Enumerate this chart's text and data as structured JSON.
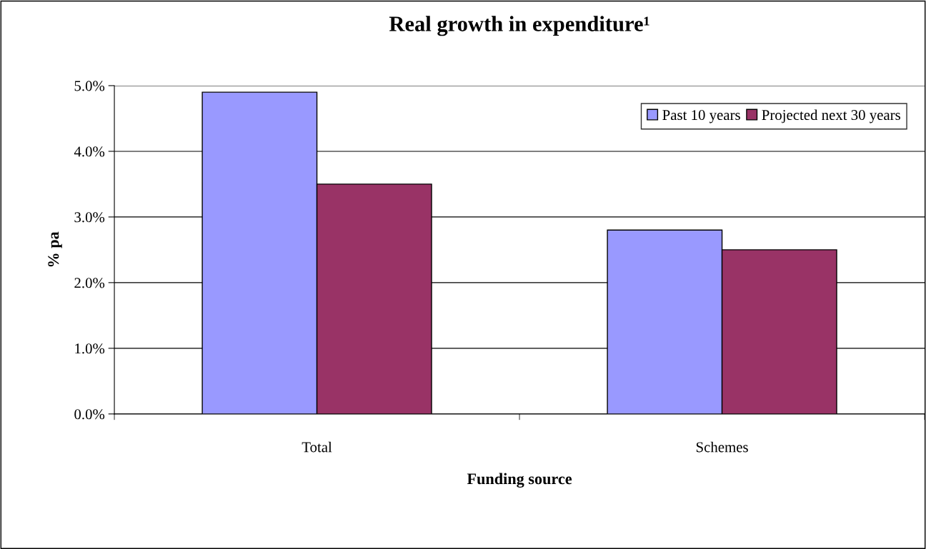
{
  "chart_data": {
    "type": "bar",
    "title": "Real growth in expenditure¹",
    "xlabel": "Funding source",
    "ylabel": "% pa",
    "categories": [
      "Total",
      "Schemes"
    ],
    "series": [
      {
        "name": "Past 10 years",
        "color": "#9999ff",
        "values": [
          4.9,
          2.8
        ]
      },
      {
        "name": "Projected next 30 years",
        "color": "#993366",
        "values": [
          3.5,
          2.5
        ]
      }
    ],
    "ylim": [
      0,
      5
    ],
    "yticks": [
      {
        "value": 0,
        "label": "0.0%"
      },
      {
        "value": 1,
        "label": "1.0%"
      },
      {
        "value": 2,
        "label": "2.0%"
      },
      {
        "value": 3,
        "label": "3.0%"
      },
      {
        "value": 4,
        "label": "4.0%"
      },
      {
        "value": 5,
        "label": "5.0%"
      }
    ],
    "grid": "y",
    "legend": "top right"
  }
}
